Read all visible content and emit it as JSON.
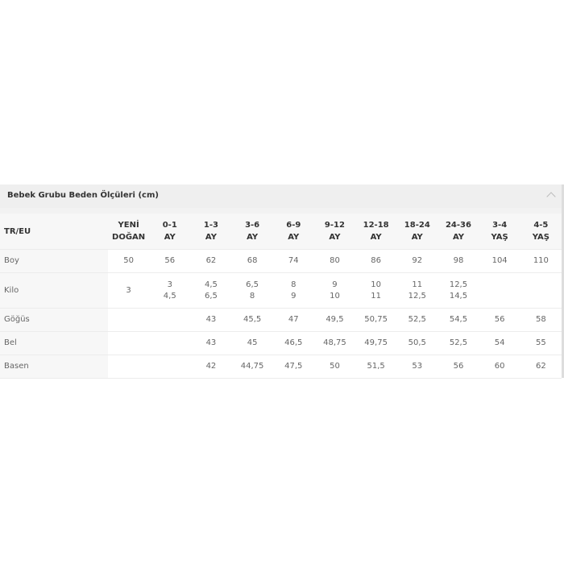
{
  "panel": {
    "title": "Bebek Grubu Beden Ölçüleri (cm)",
    "collapse_icon": "chevron-up-icon"
  },
  "table": {
    "corner": "TR/EU",
    "columns": [
      [
        "YENİ",
        "DOĞAN"
      ],
      [
        "0-1",
        "AY"
      ],
      [
        "1-3",
        "AY"
      ],
      [
        "3-6",
        "AY"
      ],
      [
        "6-9",
        "AY"
      ],
      [
        "9-12",
        "AY"
      ],
      [
        "12-18",
        "AY"
      ],
      [
        "18-24",
        "AY"
      ],
      [
        "24-36",
        "AY"
      ],
      [
        "3-4",
        "YAŞ"
      ],
      [
        "4-5",
        "YAŞ"
      ]
    ],
    "rows": [
      {
        "label": "Boy",
        "cells": [
          [
            "50"
          ],
          [
            "56"
          ],
          [
            "62"
          ],
          [
            "68"
          ],
          [
            "74"
          ],
          [
            "80"
          ],
          [
            "86"
          ],
          [
            "92"
          ],
          [
            "98"
          ],
          [
            "104"
          ],
          [
            "110"
          ]
        ]
      },
      {
        "label": "Kilo",
        "cells": [
          [
            "3"
          ],
          [
            "3",
            "4,5"
          ],
          [
            "4,5",
            "6,5"
          ],
          [
            "6,5",
            "8"
          ],
          [
            "8",
            "9"
          ],
          [
            "9",
            "10"
          ],
          [
            "10",
            "11"
          ],
          [
            "11",
            "12,5"
          ],
          [
            "12,5",
            "14,5"
          ],
          [],
          []
        ]
      },
      {
        "label": "Göğüs",
        "cells": [
          [],
          [],
          [
            "43"
          ],
          [
            "45,5"
          ],
          [
            "47"
          ],
          [
            "49,5"
          ],
          [
            "50,75"
          ],
          [
            "52,5"
          ],
          [
            "54,5"
          ],
          [
            "56"
          ],
          [
            "58"
          ]
        ]
      },
      {
        "label": "Bel",
        "cells": [
          [],
          [],
          [
            "43"
          ],
          [
            "45"
          ],
          [
            "46,5"
          ],
          [
            "48,75"
          ],
          [
            "49,75"
          ],
          [
            "50,5"
          ],
          [
            "52,5"
          ],
          [
            "54"
          ],
          [
            "55"
          ]
        ]
      },
      {
        "label": "Basen",
        "cells": [
          [],
          [],
          [
            "42"
          ],
          [
            "44,75"
          ],
          [
            "47,5"
          ],
          [
            "50"
          ],
          [
            "51,5"
          ],
          [
            "53"
          ],
          [
            "56"
          ],
          [
            "60"
          ],
          [
            "62"
          ]
        ]
      }
    ]
  }
}
